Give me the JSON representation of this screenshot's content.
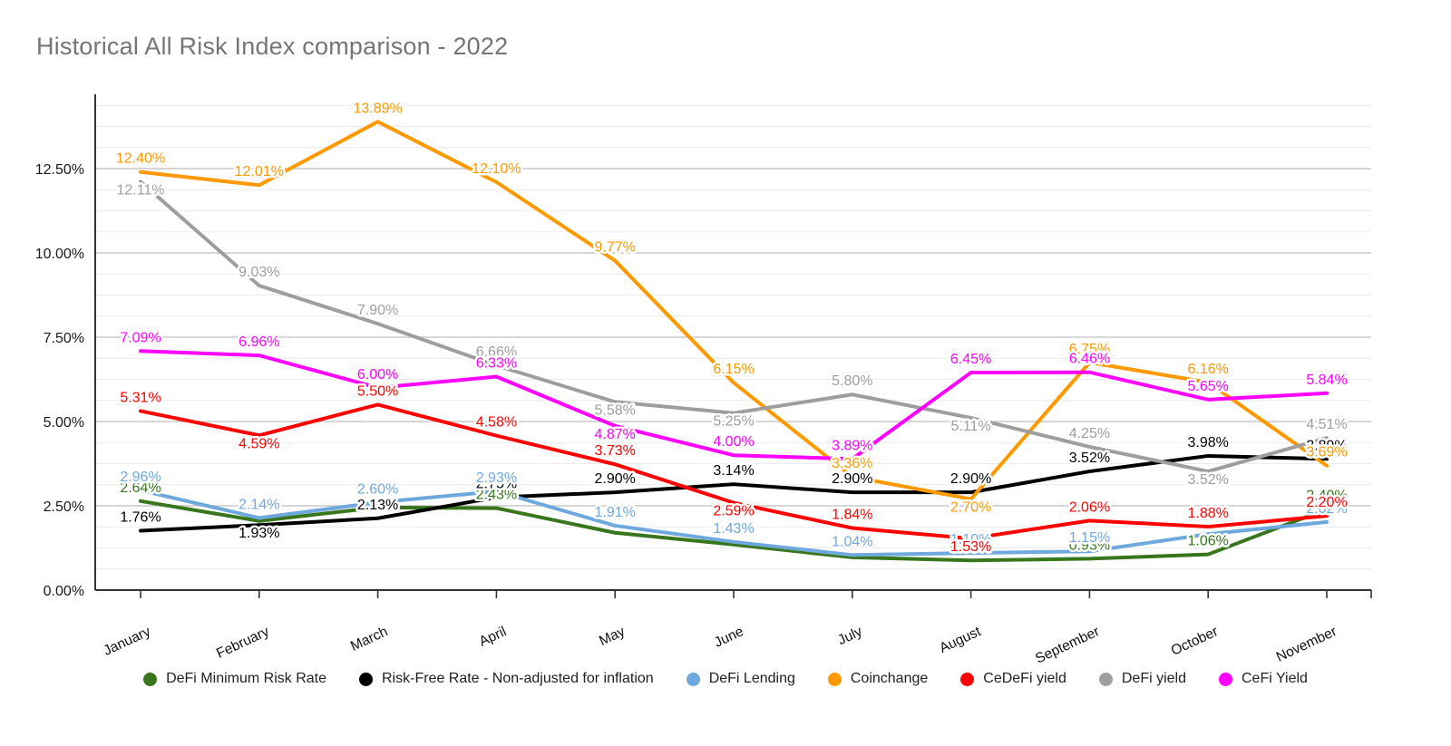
{
  "title": "Historical All Risk Index comparison - 2022",
  "chart_data": {
    "type": "line",
    "title": "Historical All Risk Index comparison - 2022",
    "xlabel": "",
    "ylabel": "",
    "categories": [
      "January",
      "February",
      "March",
      "April",
      "May",
      "June",
      "July",
      "August",
      "September",
      "October",
      "November"
    ],
    "y_ticks": [
      "0.00%",
      "2.50%",
      "5.00%",
      "7.50%",
      "10.00%",
      "12.50%"
    ],
    "ylim": [
      0,
      14.375
    ],
    "major_step": 2.5,
    "minor_step": 0.625,
    "grid": true,
    "legend_position": "bottom",
    "series": [
      {
        "name": "DeFi Minimum Risk Rate",
        "color": "#38761d",
        "values": [
          2.64,
          2.05,
          2.45,
          2.43,
          1.7,
          1.35,
          0.97,
          0.88,
          0.93,
          1.06,
          2.4
        ],
        "labels": [
          "2.64%",
          null,
          null,
          "2.43%",
          null,
          null,
          null,
          "0.88%",
          "0.93%",
          "1.06%",
          "2.40%"
        ]
      },
      {
        "name": "Risk-Free Rate - Non-adjusted for inflation",
        "color": "#000000",
        "values": [
          1.76,
          1.93,
          2.13,
          2.75,
          2.9,
          3.14,
          2.9,
          2.9,
          3.52,
          3.98,
          3.89
        ],
        "labels": [
          "1.76%",
          "1.93%",
          "2.13%",
          "2.75%",
          "2.90%",
          "3.14%",
          "2.90%",
          "2.90%",
          "3.52%",
          "3.98%",
          "3.89%"
        ]
      },
      {
        "name": "DeFi Lending",
        "color": "#6fa8dc",
        "values": [
          2.96,
          2.14,
          2.6,
          2.93,
          1.91,
          1.43,
          1.04,
          1.1,
          1.15,
          1.66,
          2.02
        ],
        "labels": [
          "2.96%",
          "2.14%",
          "2.60%",
          "2.93%",
          "1.91%",
          "1.43%",
          "1.04%",
          "1.10%",
          "1.15%",
          null,
          "2.02%"
        ]
      },
      {
        "name": "Coinchange",
        "color": "#ff9900",
        "values": [
          12.4,
          12.01,
          13.89,
          12.1,
          9.77,
          6.15,
          3.36,
          2.7,
          6.75,
          6.16,
          3.69
        ],
        "labels": [
          "12.40%",
          "12.01%",
          "13.89%",
          "12.10%",
          "9.77%",
          "6.15%",
          "3.36%",
          "2.70%",
          "6.75%",
          "6.16%",
          "3.69%"
        ]
      },
      {
        "name": "CeDeFi yield",
        "color": "#ff0000",
        "values": [
          5.31,
          4.59,
          5.5,
          4.58,
          3.73,
          2.59,
          1.84,
          1.53,
          2.06,
          1.88,
          2.2
        ],
        "labels": [
          "5.31%",
          "4.59%",
          "5.50%",
          "4.58%",
          "3.73%",
          "2.59%",
          "1.84%",
          "1.53%",
          "2.06%",
          "1.88%",
          "2.20%"
        ]
      },
      {
        "name": "DeFi yield",
        "color": "#9e9e9e",
        "values": [
          12.11,
          9.03,
          7.9,
          6.66,
          5.58,
          5.25,
          5.8,
          5.11,
          4.25,
          3.52,
          4.51
        ],
        "labels": [
          "12.11%",
          "9.03%",
          "7.90%",
          "6.66%",
          "5.58%",
          "5.25%",
          "5.80%",
          "5.11%",
          "4.25%",
          "3.52%",
          "4.51%"
        ]
      },
      {
        "name": "CeFi Yield",
        "color": "#ff00ff",
        "values": [
          7.09,
          6.96,
          6.0,
          6.33,
          4.87,
          4.0,
          3.89,
          6.45,
          6.46,
          5.65,
          5.84
        ],
        "labels": [
          "7.09%",
          "6.96%",
          "6.00%",
          "6.33%",
          "4.87%",
          "4.00%",
          "3.89%",
          "6.45%",
          "6.46%",
          "5.65%",
          "5.84%"
        ]
      }
    ],
    "colors": {
      "title_text": "#757575",
      "axis": "#333333",
      "major_grid": "#c9c9c9",
      "minor_grid": "#ebebeb",
      "tick_text": "#1a1a1a"
    }
  }
}
